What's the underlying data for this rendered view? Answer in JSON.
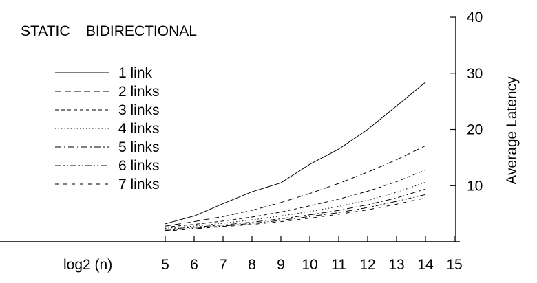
{
  "chart_data": {
    "type": "line",
    "title": "STATIC    BIDIRECTIONAL",
    "xlabel": "log2 (n)",
    "ylabel": "Average Latency",
    "xlim": [
      5,
      15
    ],
    "ylim": [
      0,
      40
    ],
    "x_ticks": [
      5,
      6,
      7,
      8,
      9,
      10,
      11,
      12,
      13,
      14,
      15
    ],
    "y_ticks": [
      10,
      20,
      30,
      40
    ],
    "grid": false,
    "legend": "top-left",
    "x": [
      5,
      6,
      7,
      8,
      9,
      10,
      11,
      12,
      13,
      14
    ],
    "series": [
      {
        "name": "1 link",
        "dash": "solid",
        "values": [
          3.2,
          4.6,
          6.8,
          8.9,
          10.5,
          13.8,
          16.5,
          20.0,
          24.2,
          28.4
        ]
      },
      {
        "name": "2 links",
        "dash": "dashed",
        "values": [
          2.8,
          3.6,
          4.5,
          5.6,
          7.0,
          8.6,
          10.4,
          12.4,
          14.6,
          17.1
        ]
      },
      {
        "name": "3 links",
        "dash": "short-dashed",
        "values": [
          2.6,
          3.1,
          3.7,
          4.4,
          5.3,
          6.4,
          7.6,
          9.0,
          10.7,
          12.8
        ]
      },
      {
        "name": "4 links",
        "dash": "dotted",
        "values": [
          2.4,
          2.8,
          3.3,
          3.9,
          4.6,
          5.4,
          6.3,
          7.4,
          8.8,
          10.6
        ]
      },
      {
        "name": "5 links",
        "dash": "dash-dot",
        "values": [
          2.2,
          2.6,
          3.0,
          3.5,
          4.1,
          4.8,
          5.6,
          6.6,
          7.8,
          9.4
        ]
      },
      {
        "name": "6 links",
        "dash": "dash-dot-dot",
        "values": [
          2.0,
          2.4,
          2.8,
          3.3,
          3.8,
          4.5,
          5.2,
          6.1,
          7.2,
          8.4
        ]
      },
      {
        "name": "7 links",
        "dash": "loose-dashed",
        "values": [
          1.9,
          2.3,
          2.7,
          3.1,
          3.6,
          4.2,
          4.9,
          5.7,
          6.7,
          7.8
        ]
      }
    ]
  }
}
